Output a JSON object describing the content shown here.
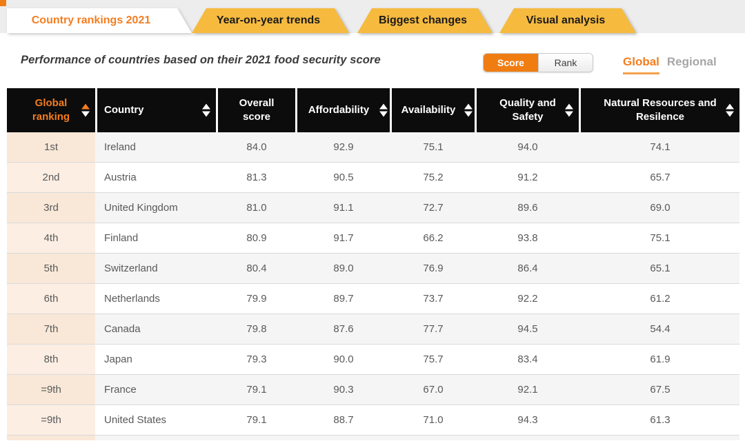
{
  "tabs": [
    {
      "label": "Country rankings 2021",
      "active": true
    },
    {
      "label": "Year-on-year trends",
      "active": false
    },
    {
      "label": "Biggest changes",
      "active": false
    },
    {
      "label": "Visual analysis",
      "active": false
    }
  ],
  "subtitle": "Performance of countries based on their 2021 food security score",
  "view_toggle": {
    "options": [
      "Score",
      "Rank"
    ],
    "selected": "Score"
  },
  "scope_toggle": {
    "options": [
      "Global",
      "Regional"
    ],
    "selected": "Global"
  },
  "table": {
    "columns": [
      {
        "label": "Global ranking",
        "sortable": true,
        "sort_state": "ascending"
      },
      {
        "label": "Country",
        "sortable": true
      },
      {
        "label": "Overall score",
        "sortable": false
      },
      {
        "label": "Affordability",
        "sortable": true
      },
      {
        "label": "Availability",
        "sortable": true
      },
      {
        "label": "Quality and Safety",
        "sortable": true
      },
      {
        "label": "Natural Resources and Resilence",
        "sortable": true
      }
    ],
    "rows": [
      {
        "rank": "1st",
        "country": "Ireland",
        "overall": "84.0",
        "affordability": "92.9",
        "availability": "75.1",
        "quality_safety": "94.0",
        "natural_resources": "74.1"
      },
      {
        "rank": "2nd",
        "country": "Austria",
        "overall": "81.3",
        "affordability": "90.5",
        "availability": "75.2",
        "quality_safety": "91.2",
        "natural_resources": "65.7"
      },
      {
        "rank": "3rd",
        "country": "United Kingdom",
        "overall": "81.0",
        "affordability": "91.1",
        "availability": "72.7",
        "quality_safety": "89.6",
        "natural_resources": "69.0"
      },
      {
        "rank": "4th",
        "country": "Finland",
        "overall": "80.9",
        "affordability": "91.7",
        "availability": "66.2",
        "quality_safety": "93.8",
        "natural_resources": "75.1"
      },
      {
        "rank": "5th",
        "country": "Switzerland",
        "overall": "80.4",
        "affordability": "89.0",
        "availability": "76.9",
        "quality_safety": "86.4",
        "natural_resources": "65.1"
      },
      {
        "rank": "6th",
        "country": "Netherlands",
        "overall": "79.9",
        "affordability": "89.7",
        "availability": "73.7",
        "quality_safety": "92.2",
        "natural_resources": "61.2"
      },
      {
        "rank": "7th",
        "country": "Canada",
        "overall": "79.8",
        "affordability": "87.6",
        "availability": "77.7",
        "quality_safety": "94.5",
        "natural_resources": "54.4"
      },
      {
        "rank": "8th",
        "country": "Japan",
        "overall": "79.3",
        "affordability": "90.0",
        "availability": "75.7",
        "quality_safety": "83.4",
        "natural_resources": "61.9"
      },
      {
        "rank": "=9th",
        "country": "France",
        "overall": "79.1",
        "affordability": "90.3",
        "availability": "67.0",
        "quality_safety": "92.1",
        "natural_resources": "67.5"
      },
      {
        "rank": "=9th",
        "country": "United States",
        "overall": "79.1",
        "affordability": "88.7",
        "availability": "71.0",
        "quality_safety": "94.3",
        "natural_resources": "61.3"
      }
    ]
  },
  "colors": {
    "accent_orange": "#f07d12",
    "tab_text_orange": "#f47d20",
    "tab_amber": "#f6ba3f",
    "header_black": "#0c0c0c",
    "rank_peach": "#f9e8d7",
    "row_alt_gray": "#f5f5f5",
    "inactive_gray": "#a6a6a6"
  }
}
